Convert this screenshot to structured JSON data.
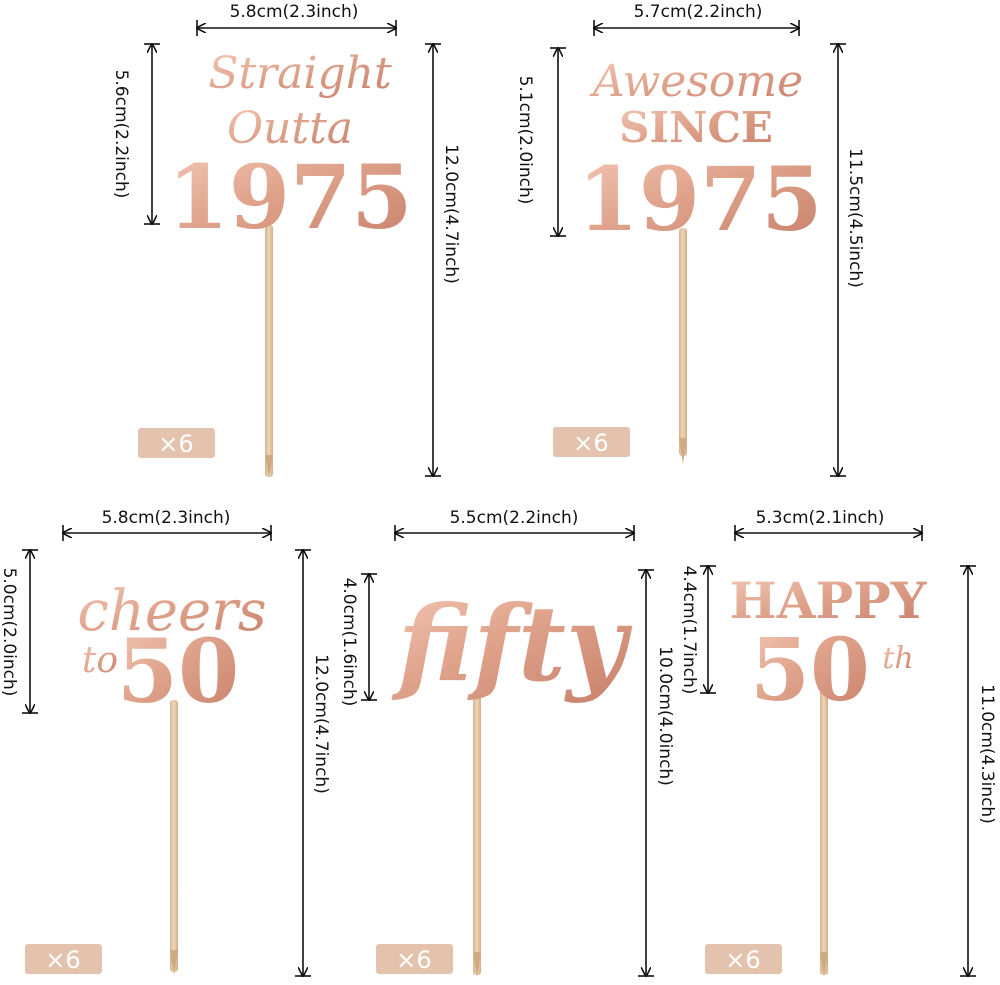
{
  "colors": {
    "rose_gold_light": "#f3c9b6",
    "rose_gold": "#dfa28b",
    "rose_gold_dark": "#b9735f",
    "stick": "#e3c7a5",
    "badge": "#e3c3ad",
    "line": "#111111"
  },
  "toppers": [
    {
      "id": "straight-outta-1975",
      "lines": [
        "Straight",
        "Outta",
        "1975"
      ],
      "width_label": "5.8cm(2.3inch)",
      "head_height_label": "5.6cm(2.2inch)",
      "total_height_label": "12.0cm(4.7inch)",
      "quantity": "×6"
    },
    {
      "id": "awesome-since-1975",
      "lines": [
        "Awesome",
        "SINCE",
        "1975"
      ],
      "width_label": "5.7cm(2.2inch)",
      "head_height_label": "5.1cm(2.0inch)",
      "total_height_label": "11.5cm(4.5inch)",
      "quantity": "×6"
    },
    {
      "id": "cheers-to-50",
      "lines": [
        "cheers",
        "to",
        "50"
      ],
      "width_label": "5.8cm(2.3inch)",
      "head_height_label": "5.0cm(2.0inch)",
      "total_height_label": "12.0cm(4.7inch)",
      "quantity": "×6"
    },
    {
      "id": "fifty",
      "lines": [
        "fifty"
      ],
      "width_label": "5.5cm(2.2inch)",
      "head_height_label": "4.0cm(1.6inch)",
      "total_height_label": "10.0cm(4.0inch)",
      "quantity": "×6"
    },
    {
      "id": "happy-50th",
      "lines": [
        "HAPPY",
        "50",
        "th"
      ],
      "width_label": "5.3cm(2.1inch)",
      "head_height_label": "4.4cm(1.7inch)",
      "total_height_label": "11.0cm(4.3inch)",
      "quantity": "×6"
    }
  ]
}
